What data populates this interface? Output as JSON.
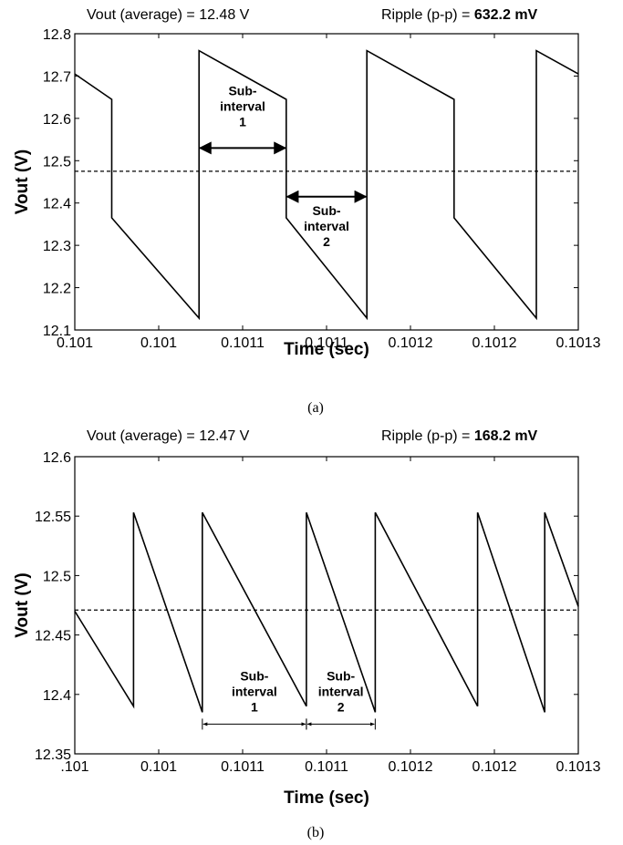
{
  "chart_data": [
    {
      "type": "line",
      "caption": "(a)",
      "stats": {
        "average_label": "Vout (average) = 12.48 V",
        "ripple_label": "Ripple (p-p) = ",
        "ripple_value": "632.2 mV"
      },
      "xlabel": "Time (sec)",
      "ylabel": "Vout (V)",
      "xlim": [
        0,
        30
      ],
      "ylim": [
        12.1,
        12.8
      ],
      "x_tick_labels": [
        "0.101",
        "0.101",
        "0.1011",
        "0.1011",
        "0.1012",
        "0.1012",
        "0.1013"
      ],
      "y_ticks": [
        12.1,
        12.2,
        12.3,
        12.4,
        12.5,
        12.6,
        12.7,
        12.8
      ],
      "y_tick_labels": [
        "12.1",
        "12.2",
        "12.3",
        "12.4",
        "12.5",
        "12.6",
        "12.7",
        "12.8"
      ],
      "grid": false,
      "series": [
        {
          "x": [
            0,
            2.2,
            2.2,
            7.4,
            7.4,
            12.6,
            12.6,
            17.4,
            17.4,
            22.6,
            22.6,
            27.5,
            27.5,
            30
          ],
          "values": [
            12.705,
            12.645,
            12.365,
            12.128,
            12.76,
            12.645,
            12.365,
            12.128,
            12.76,
            12.645,
            12.365,
            12.128,
            12.76,
            12.705
          ]
        }
      ],
      "average_value": 12.475,
      "annotations": [
        {
          "lines": [
            "Sub-",
            "interval",
            "1"
          ],
          "span": [
            7.4,
            12.6
          ],
          "y": 12.53
        },
        {
          "lines": [
            "Sub-",
            "interval",
            "2"
          ],
          "span": [
            12.6,
            17.4
          ],
          "y": 12.415
        }
      ]
    },
    {
      "type": "line",
      "caption": "(b)",
      "stats": {
        "average_label": "Vout (average) = 12.47 V",
        "ripple_label": "Ripple (p-p) = ",
        "ripple_value": "168.2 mV"
      },
      "xlabel": "Time (sec)",
      "ylabel": "Vout (V)",
      "xlim": [
        0,
        30
      ],
      "ylim": [
        12.35,
        12.6
      ],
      "x_tick_labels": [
        ".101",
        "0.101",
        "0.1011",
        "0.1011",
        "0.1012",
        "0.1012",
        "0.1013"
      ],
      "y_ticks": [
        12.35,
        12.4,
        12.45,
        12.5,
        12.55,
        12.6
      ],
      "y_tick_labels": [
        "12.35",
        "12.4",
        "12.45",
        "12.5",
        "12.55",
        "12.6"
      ],
      "grid": false,
      "series": [
        {
          "x": [
            0,
            3.5,
            3.5,
            7.6,
            7.6,
            13.8,
            13.8,
            17.9,
            17.9,
            24.0,
            24.0,
            28.0,
            28.0,
            30
          ],
          "values": [
            12.47,
            12.39,
            12.553,
            12.385,
            12.553,
            12.39,
            12.553,
            12.385,
            12.553,
            12.39,
            12.553,
            12.385,
            12.553,
            12.474
          ]
        }
      ],
      "average_value": 12.471,
      "annotations": [
        {
          "lines": [
            "Sub-",
            "interval",
            "1"
          ],
          "span": [
            7.6,
            13.8
          ],
          "y": 12.375,
          "style": "bracket"
        },
        {
          "lines": [
            "Sub-",
            "interval",
            "2"
          ],
          "span": [
            13.8,
            17.9
          ],
          "y": 12.375,
          "style": "bracket"
        }
      ]
    }
  ]
}
